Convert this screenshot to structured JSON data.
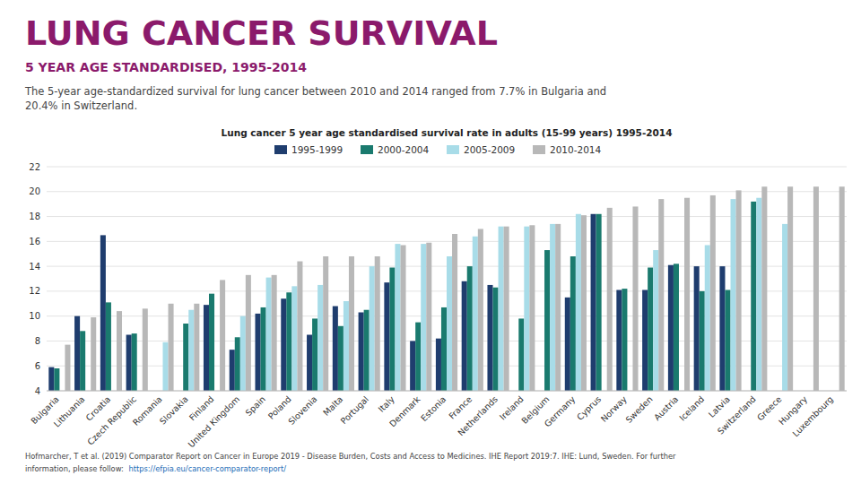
{
  "chart_data": {
    "type": "bar",
    "title": "LUNG CANCER SURVIVAL",
    "subtitle": "5 YEAR AGE STANDARDISED, 1995-2014",
    "description": [
      "The 5-year age-standardized survival for lung cancer between 2010 and 2014 ranged from 7.7% in Bulgaria and",
      "20.4% in Switzerland."
    ],
    "chart_title": "Lung cancer 5 year age standardised survival rate in adults (15-99 years) 1995-2014",
    "footer": [
      "Hofmarcher, T et al. (2019) Comparator Report on Cancer in Europe 2019 - Disease Burden, Costs and Access to Medicines. IHE Report 2019:7. IHE: Lund, Sweden. For further",
      "information, please follow: ",
      "https://efpia.eu/cancer-comparator-report/"
    ],
    "categories": [
      "Bulgaria",
      "Lithuania",
      "Croatia",
      "Czech Republic",
      "Romania",
      "Slovakia",
      "Finland",
      "United Kingdom",
      "Spain",
      "Poland",
      "Slovenia",
      "Malta",
      "Portugal",
      "Italy",
      "Denmark",
      "Estonia",
      "France",
      "Netherlands",
      "Ireland",
      "Belgium",
      "Germany",
      "Cyprus",
      "Norway",
      "Sweden",
      "Austria",
      "Iceland",
      "Latvia",
      "Switzerland",
      "Greece",
      "Hungary",
      "Luxembourg"
    ],
    "series": [
      {
        "name": "1995-1999",
        "color": "#1f3d6e",
        "values": [
          5.9,
          10.0,
          16.5,
          8.5,
          null,
          null,
          10.9,
          7.3,
          10.2,
          11.4,
          8.5,
          10.8,
          10.3,
          12.7,
          8.0,
          8.2,
          12.8,
          12.5,
          null,
          null,
          11.5,
          18.2,
          12.1,
          12.1,
          14.1,
          14.0,
          14.0,
          null,
          null,
          null,
          null
        ]
      },
      {
        "name": "2000-2004",
        "color": "#1a7a6e",
        "values": [
          5.8,
          8.8,
          11.1,
          8.6,
          null,
          9.4,
          11.8,
          8.3,
          10.7,
          11.9,
          9.8,
          9.2,
          10.5,
          13.9,
          9.5,
          10.7,
          14.0,
          12.3,
          9.8,
          15.3,
          14.8,
          18.2,
          12.2,
          13.9,
          14.2,
          12.0,
          12.1,
          19.2,
          null,
          null,
          null
        ]
      },
      {
        "name": "2005-2009",
        "color": "#a8dce8",
        "values": [
          null,
          null,
          null,
          null,
          7.9,
          10.5,
          null,
          10.0,
          13.1,
          12.4,
          12.5,
          11.2,
          14.0,
          15.8,
          15.8,
          14.8,
          16.4,
          17.2,
          17.2,
          17.4,
          18.2,
          null,
          null,
          15.3,
          null,
          15.7,
          19.4,
          19.5,
          17.4,
          null,
          null
        ]
      },
      {
        "name": "2010-2014",
        "color": "#b8b8b8",
        "values": [
          7.7,
          9.9,
          10.4,
          10.6,
          11.0,
          11.0,
          12.9,
          13.3,
          13.3,
          14.4,
          14.8,
          14.8,
          14.8,
          15.7,
          15.9,
          16.6,
          17.0,
          17.2,
          17.3,
          17.4,
          18.1,
          18.7,
          18.8,
          19.4,
          19.5,
          19.7,
          20.1,
          20.4,
          20.4,
          20.4,
          20.4
        ]
      }
    ],
    "ylim": [
      4,
      22
    ],
    "yticks": [
      4,
      6,
      8,
      10,
      12,
      14,
      16,
      18,
      20,
      22
    ],
    "grid": true,
    "legend": "top"
  }
}
